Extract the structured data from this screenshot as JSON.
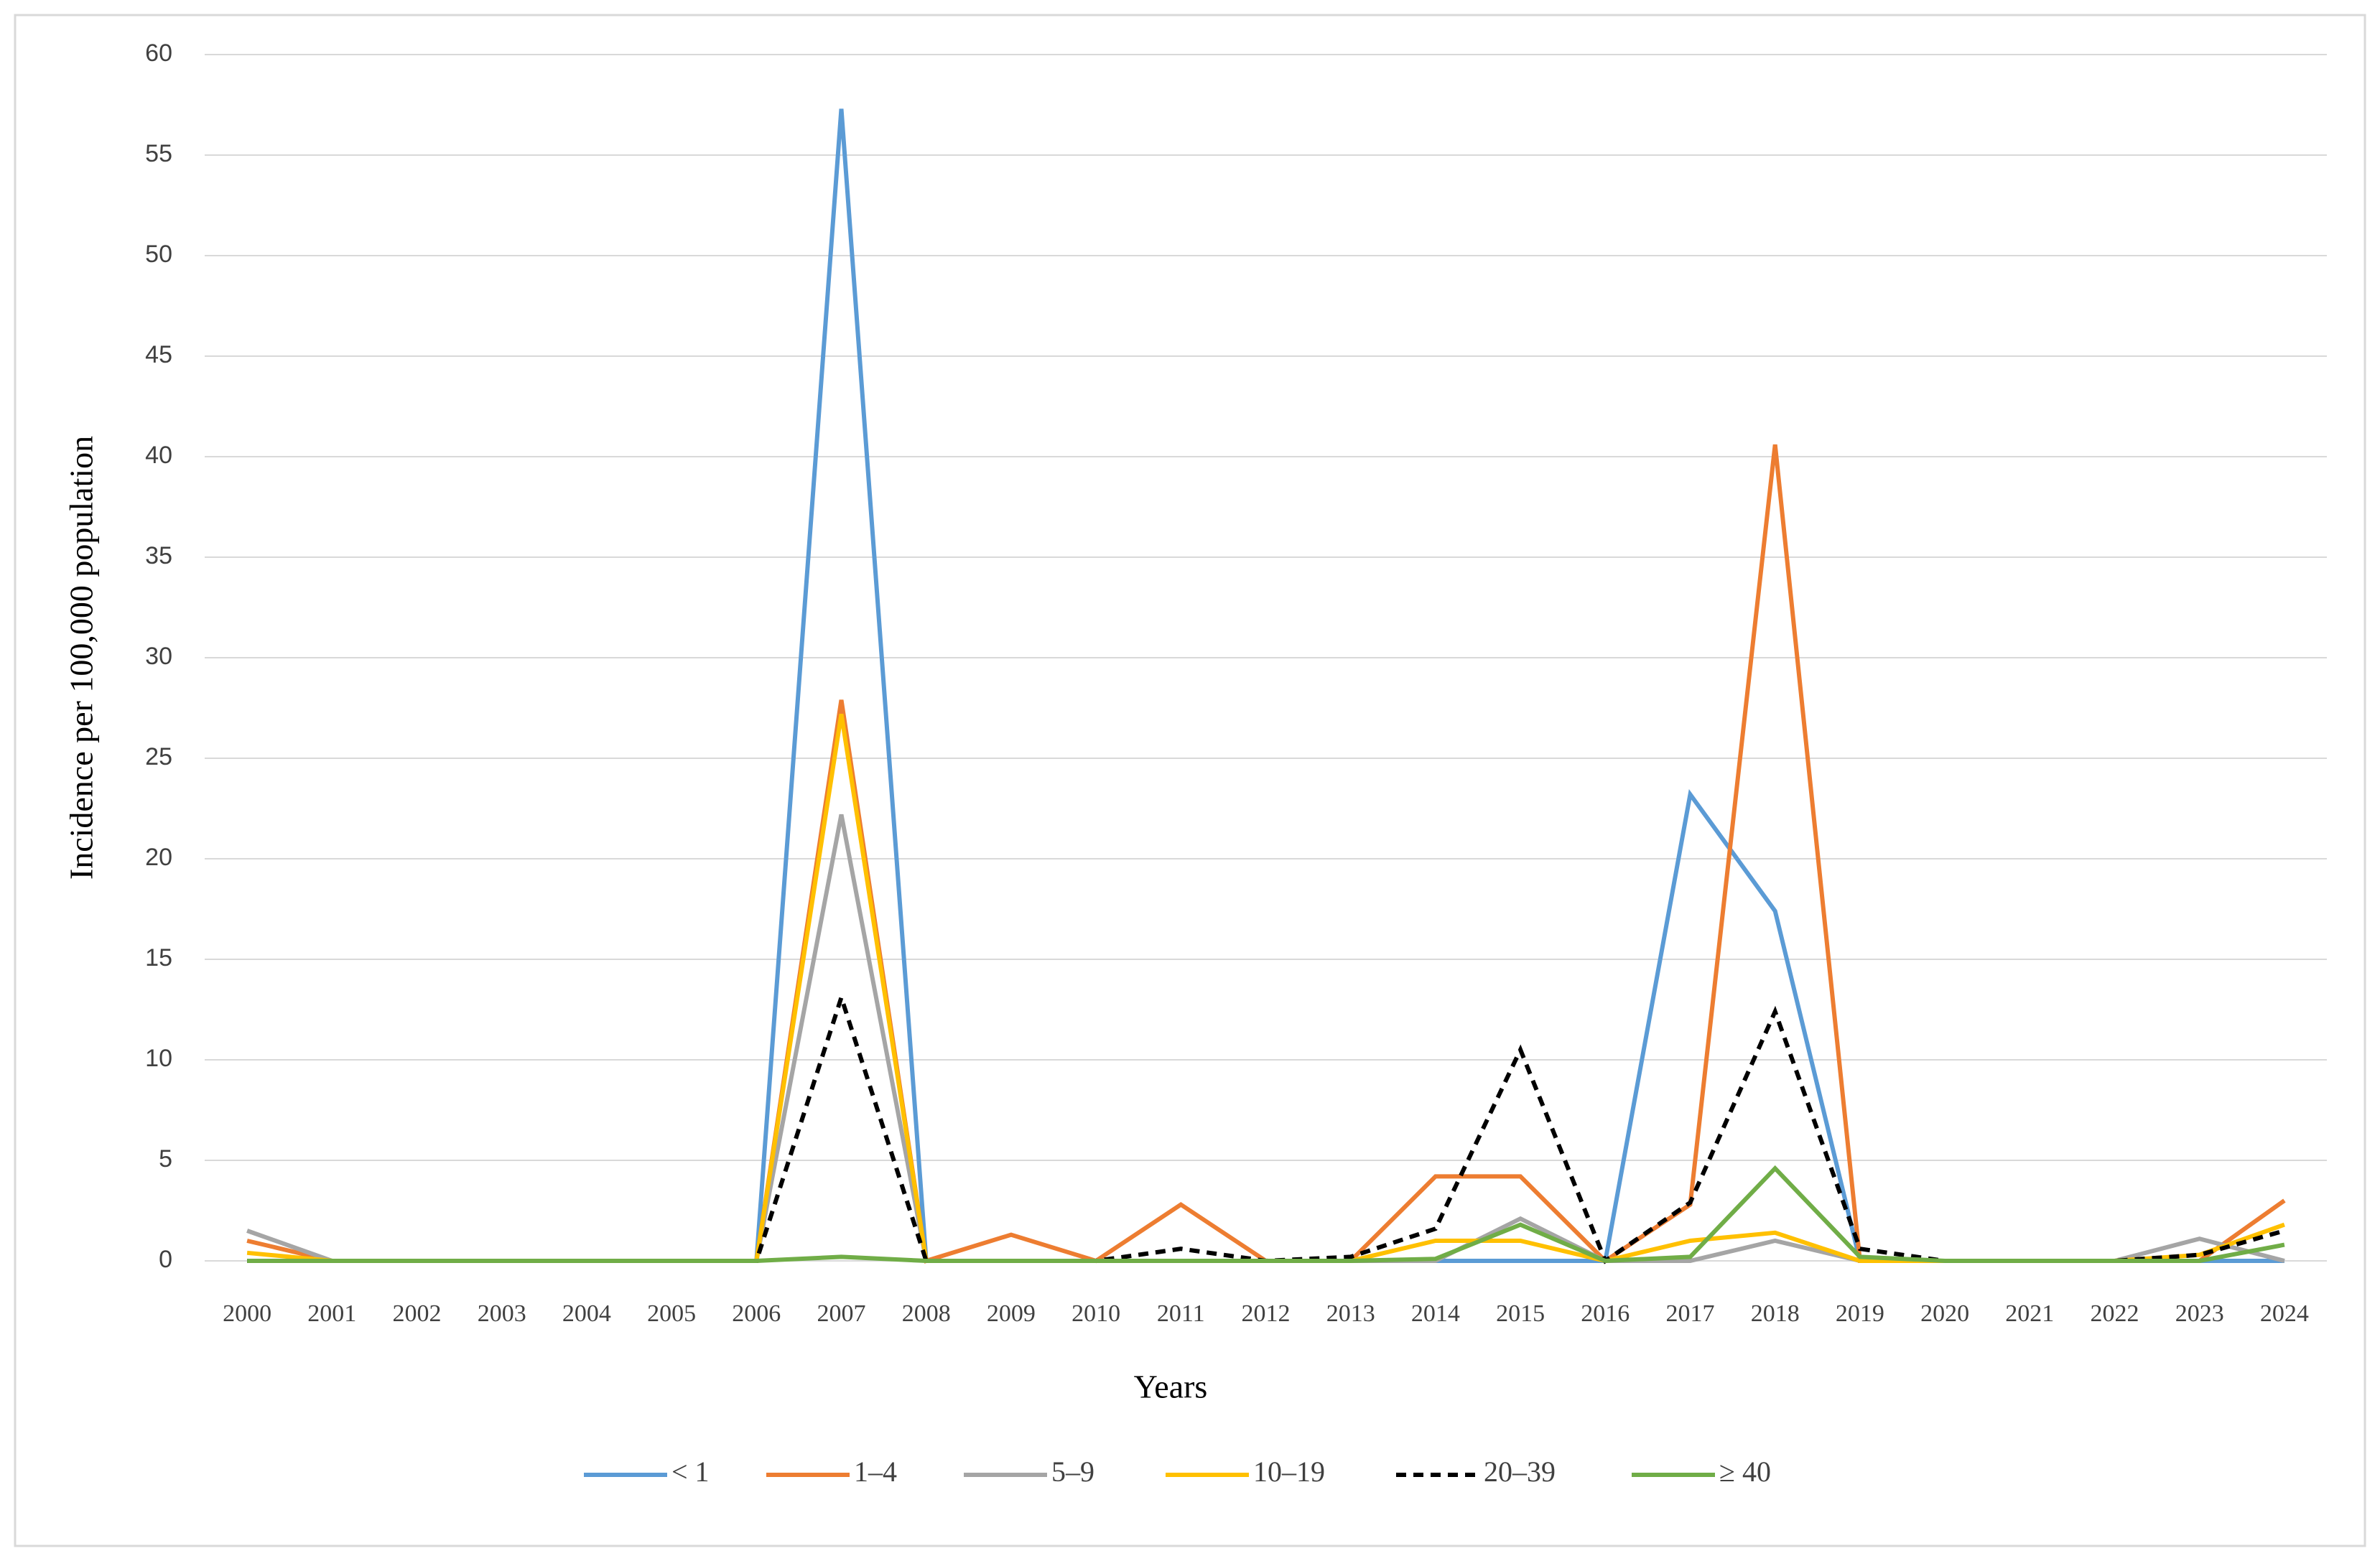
{
  "chart_data": {
    "type": "line",
    "y_label": "Incidence per 100,000 population",
    "x_label": "Years",
    "categories": [
      "2000",
      "2001",
      "2002",
      "2003",
      "2004",
      "2005",
      "2006",
      "2007",
      "2008",
      "2009",
      "2010",
      "2011",
      "2012",
      "2013",
      "2014",
      "2015",
      "2016",
      "2017",
      "2018",
      "2019",
      "2020",
      "2021",
      "2022",
      "2023",
      "2024"
    ],
    "series": [
      {
        "name": "< 1",
        "color": "#5b9bd5",
        "values": [
          0,
          0,
          0,
          0,
          0,
          0,
          0,
          57.3,
          0,
          0,
          0,
          0,
          0,
          0,
          0,
          0,
          0,
          23.2,
          17.4,
          0,
          0,
          0,
          0,
          0,
          0
        ]
      },
      {
        "name": "1–4",
        "color": "#ed7d31",
        "values": [
          1.0,
          0,
          0,
          0,
          0,
          0,
          0,
          27.9,
          0,
          1.3,
          0,
          2.8,
          0,
          0,
          4.2,
          4.2,
          0,
          2.8,
          40.6,
          0,
          0,
          0,
          0,
          0,
          3.0
        ]
      },
      {
        "name": "5–9",
        "color": "#a5a5a5",
        "values": [
          1.5,
          0,
          0,
          0,
          0,
          0,
          0,
          22.2,
          0,
          0,
          0,
          0,
          0,
          0,
          0,
          2.1,
          0,
          0,
          1.0,
          0,
          0,
          0,
          0,
          1.1,
          0
        ]
      },
      {
        "name": "10–19",
        "color": "#ffc000",
        "values": [
          0.4,
          0,
          0,
          0,
          0,
          0,
          0,
          27.2,
          0,
          0,
          0,
          0,
          0,
          0,
          1.0,
          1.0,
          0,
          1.0,
          1.4,
          0,
          0,
          0,
          0,
          0.3,
          1.8
        ]
      },
      {
        "name": "20–39",
        "color": "#000000",
        "dashed": true,
        "values": [
          0,
          0,
          0,
          0,
          0,
          0,
          0,
          13.1,
          0,
          0,
          0,
          0.6,
          0,
          0.2,
          1.6,
          10.5,
          0,
          2.9,
          12.4,
          0.6,
          0,
          0,
          0,
          0.3,
          1.5
        ]
      },
      {
        "name": "≥ 40",
        "color": "#70ad47",
        "values": [
          0,
          0,
          0,
          0,
          0,
          0,
          0,
          0.2,
          0,
          0,
          0,
          0,
          0,
          0,
          0.1,
          1.8,
          0,
          0.2,
          4.6,
          0.2,
          0,
          0,
          0,
          0,
          0.8
        ]
      }
    ],
    "ylim": [
      0,
      60
    ],
    "yticks": [
      0,
      5,
      10,
      15,
      20,
      25,
      30,
      35,
      40,
      45,
      50,
      55,
      60
    ],
    "grid": true
  }
}
